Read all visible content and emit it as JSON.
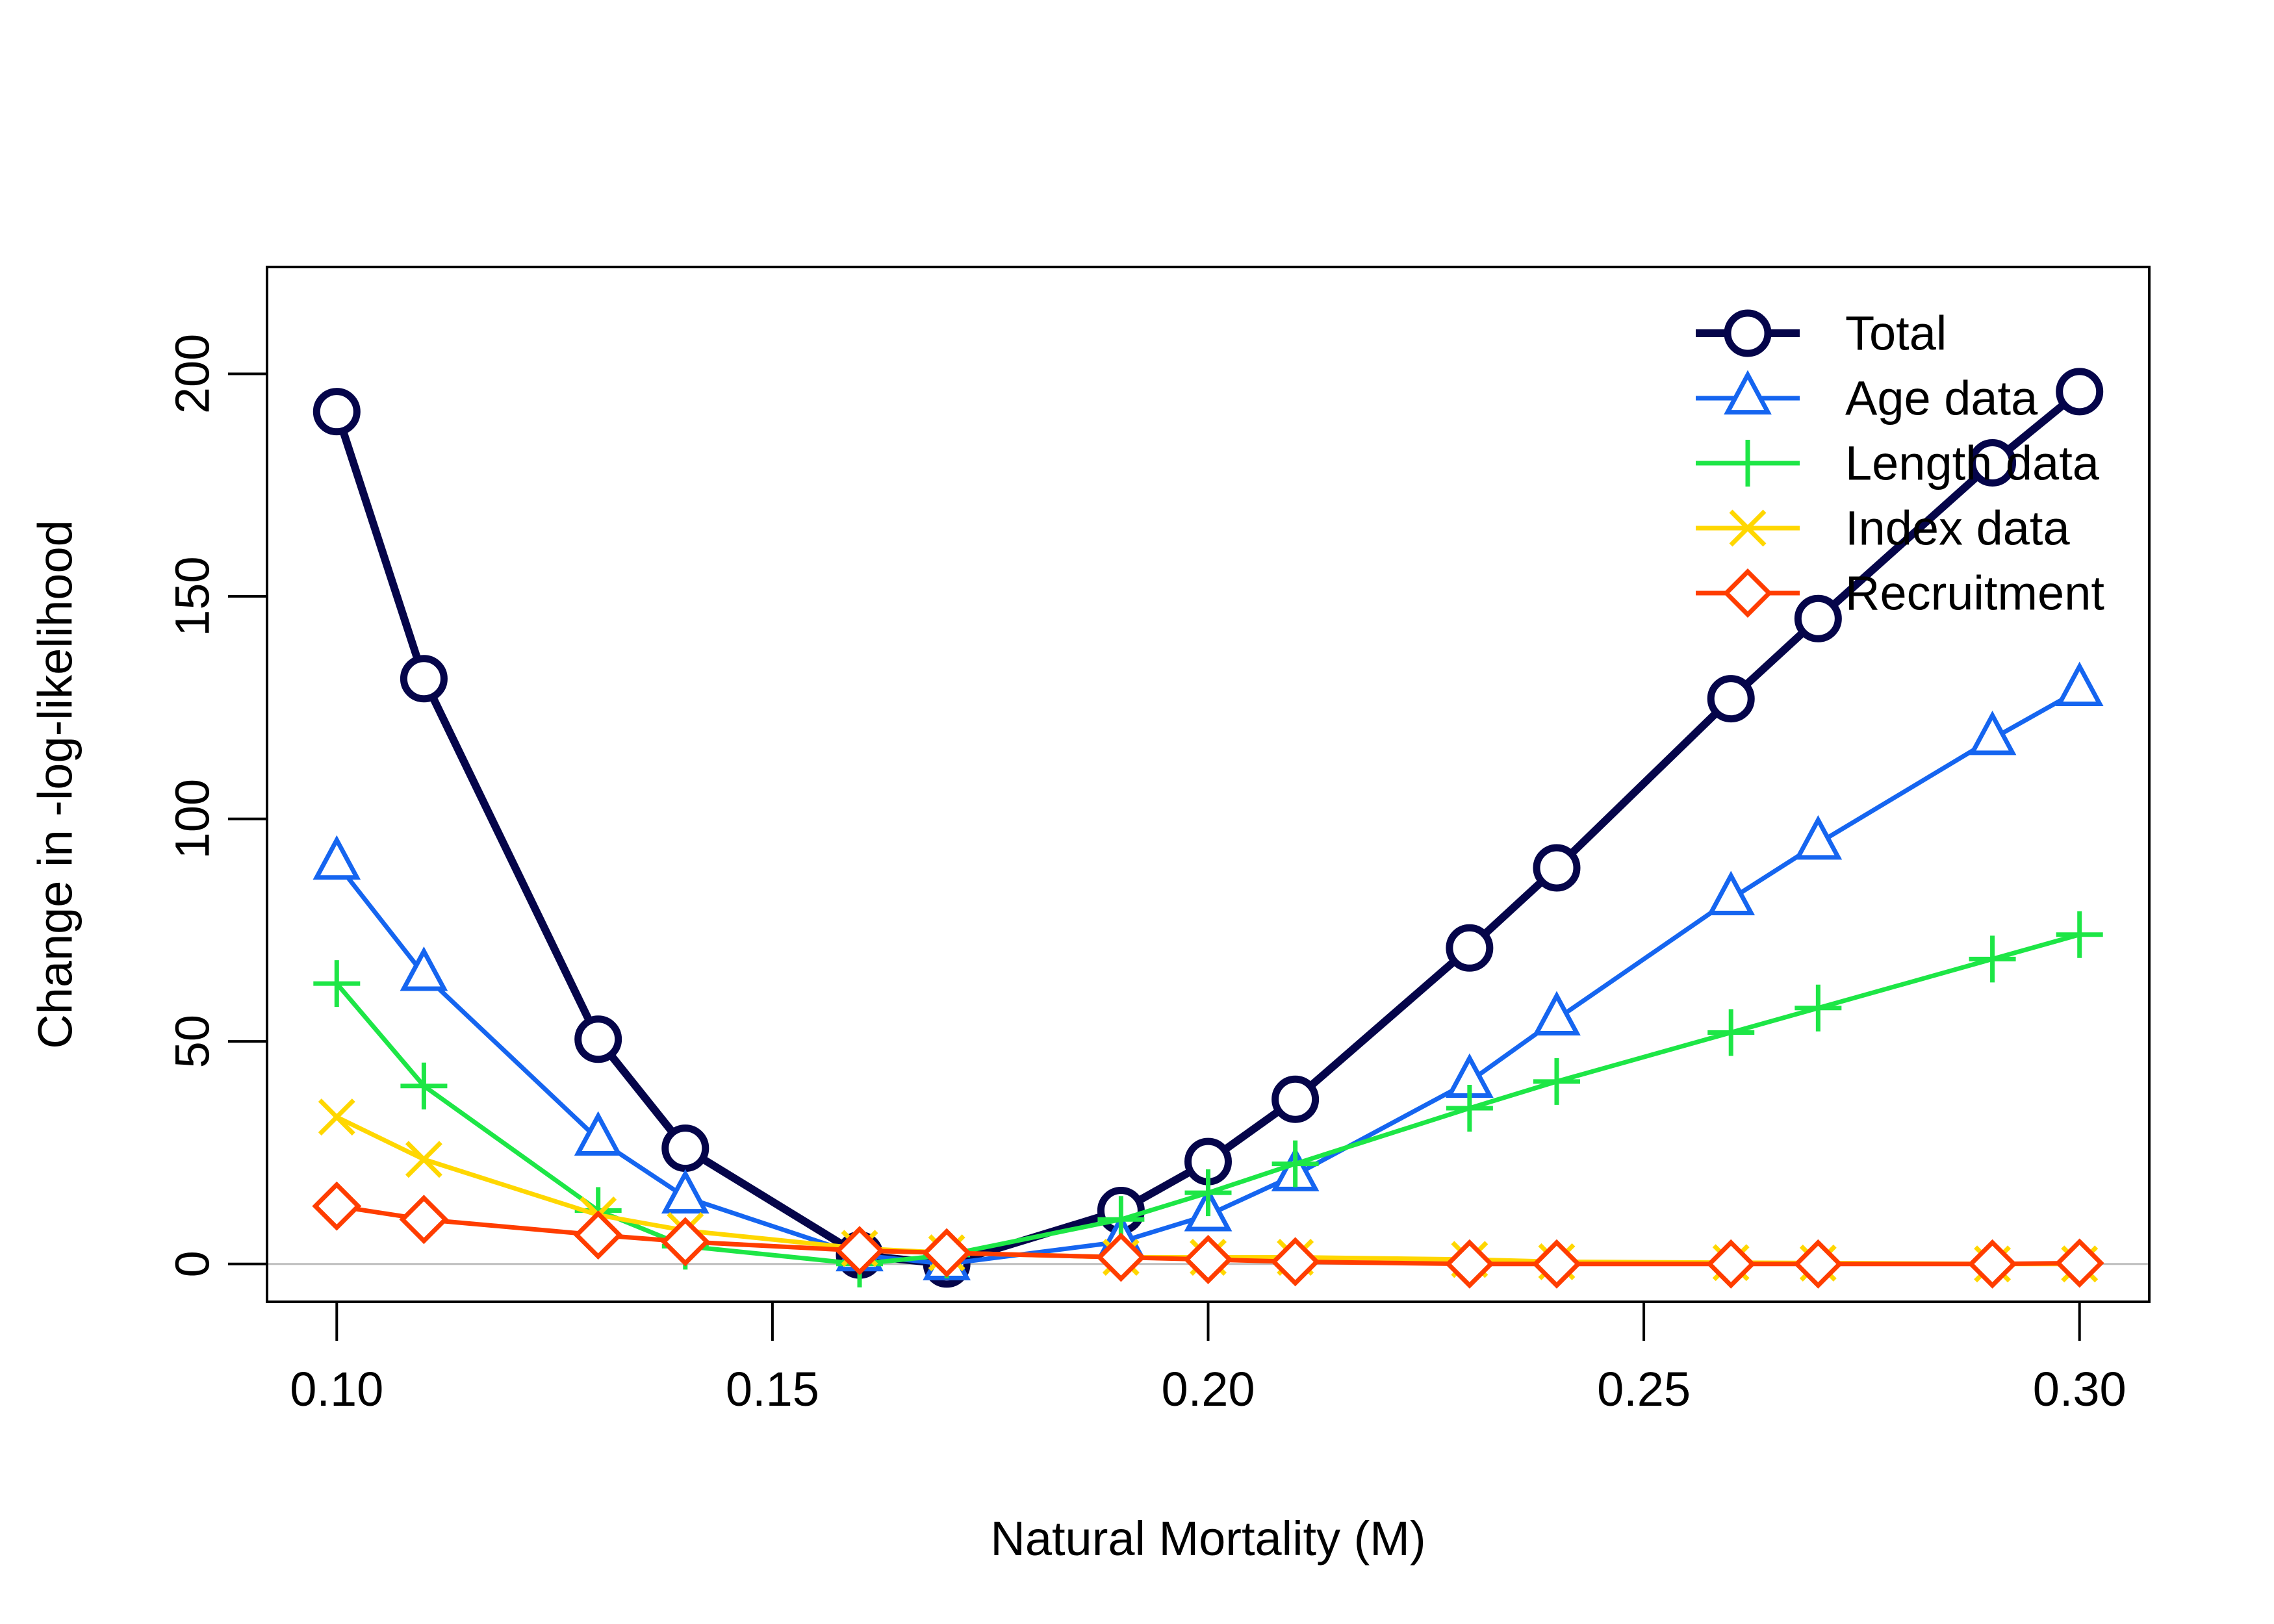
{
  "chart_data": {
    "type": "line",
    "title": "",
    "xlabel": "Natural Mortality (M)",
    "ylabel": "Change in -log-likelihood",
    "xlim": [
      0.092,
      0.308
    ],
    "ylim": [
      -8.5,
      224
    ],
    "x_ticks": [
      0.1,
      0.15,
      0.2,
      0.25,
      0.3
    ],
    "x_tick_labels": [
      "0.10",
      "0.15",
      "0.20",
      "0.25",
      "0.30"
    ],
    "y_ticks": [
      0,
      50,
      100,
      150,
      200
    ],
    "y_tick_labels": [
      "0",
      "50",
      "100",
      "150",
      "200"
    ],
    "grid": false,
    "reference_line": {
      "y": 0,
      "color": "#bebebe"
    },
    "legend_position": "top-right",
    "x": [
      0.1,
      0.11,
      0.13,
      0.14,
      0.16,
      0.17,
      0.19,
      0.2,
      0.21,
      0.23,
      0.24,
      0.26,
      0.27,
      0.29,
      0.3
    ],
    "series": [
      {
        "name": "Total",
        "color": "#05054a",
        "marker": "circle",
        "width": "thick",
        "values": [
          191.5,
          131.5,
          50.5,
          26.0,
          2.0,
          0.0,
          12.0,
          23.0,
          37.0,
          71.0,
          89.0,
          127.0,
          145.0,
          180.0,
          196.0
        ]
      },
      {
        "name": "Age data",
        "color": "#1565f0",
        "marker": "triangle",
        "width": "thin",
        "values": [
          90.0,
          65.0,
          28.0,
          15.0,
          2.0,
          0.0,
          5.0,
          11.0,
          20.0,
          41.0,
          55.0,
          82.0,
          94.5,
          118.0,
          129.0
        ]
      },
      {
        "name": "Length data",
        "color": "#1de646",
        "marker": "plus",
        "width": "thin",
        "values": [
          63.0,
          40.0,
          12.0,
          4.0,
          0.0,
          2.0,
          10.0,
          16.0,
          22.5,
          35.0,
          41.0,
          52.0,
          57.5,
          68.5,
          74.0
        ]
      },
      {
        "name": "Index data",
        "color": "#ffd700",
        "marker": "x",
        "width": "thin",
        "values": [
          33.0,
          23.5,
          11.0,
          7.5,
          3.5,
          2.5,
          1.5,
          1.5,
          1.5,
          1.0,
          0.5,
          0.3,
          0.2,
          0.0,
          0.0
        ]
      },
      {
        "name": "Recruitment",
        "color": "#ff3d00",
        "marker": "diamond",
        "width": "thin",
        "values": [
          13.0,
          10.0,
          6.5,
          5.0,
          3.0,
          2.5,
          1.5,
          1.0,
          0.5,
          0.0,
          0.0,
          0.0,
          0.0,
          0.0,
          0.2
        ]
      }
    ]
  }
}
